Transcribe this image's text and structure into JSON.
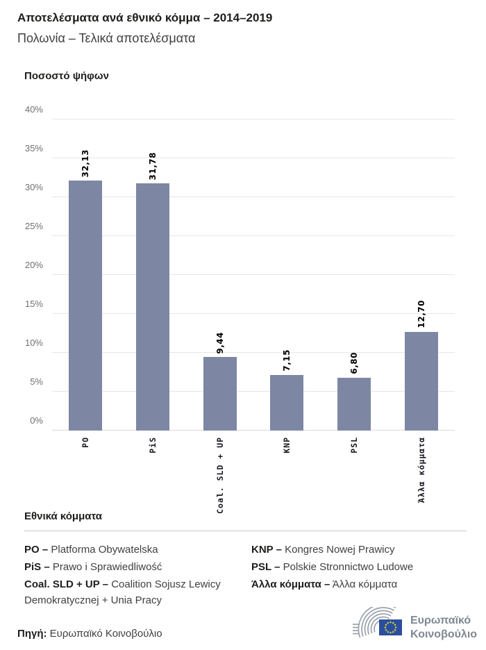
{
  "header": {
    "title": "Αποτελέσματα ανά εθνικό κόμμα – 2014–2019",
    "subtitle": "Πολωνία – Τελικά αποτελέσματα"
  },
  "chart_data": {
    "type": "bar",
    "title": "Ποσοστό ψήφων",
    "categories": [
      "PO",
      "PiS",
      "Coal. SLD + UP",
      "KNP",
      "PSL",
      "Άλλα κόμματα"
    ],
    "values": [
      32.13,
      31.78,
      9.44,
      7.15,
      6.8,
      12.7
    ],
    "value_labels": [
      "32,13",
      "31,78",
      "9,44",
      "7,15",
      "6,80",
      "12,70"
    ],
    "ylabel": "Ποσοστό ψήφων",
    "xlabel": "",
    "ylim": [
      0,
      40
    ],
    "ytick_step": 5,
    "ytick_labels": [
      "0%",
      "5%",
      "10%",
      "15%",
      "20%",
      "25%",
      "30%",
      "35%",
      "40%"
    ],
    "grid": true,
    "legend_position": "none",
    "bar_color": "#7d87a3"
  },
  "legend": {
    "heading": "Εθνικά κόμματα",
    "entries": [
      {
        "abbr": "PO –",
        "name": "Platforma Obywatelska"
      },
      {
        "abbr": "PiS –",
        "name": "Prawo i Sprawiedliwość"
      },
      {
        "abbr": "Coal. SLD + UP –",
        "name": "Coalition Sojusz Lewicy Demokratycznej + Unia Pracy"
      },
      {
        "abbr": "KNP –",
        "name": "Kongres Nowej Prawicy"
      },
      {
        "abbr": "PSL –",
        "name": "Polskie Stronnictwo Ludowe"
      },
      {
        "abbr": "Άλλα κόμματα –",
        "name": "Άλλα κόμματα"
      }
    ]
  },
  "footer": {
    "source_label": "Πηγή:",
    "source_value": "Ευρωπαϊκό Κοινοβούλιο",
    "logo_line1": "Ευρωπαϊκό",
    "logo_line2": "Κοινοβούλιο"
  },
  "colors": {
    "bar": "#7d87a3",
    "gridline": "#e6e6e8",
    "logo_blue": "#2b4da0",
    "logo_star": "#c9d232",
    "logo_gray": "#99a1aa"
  }
}
